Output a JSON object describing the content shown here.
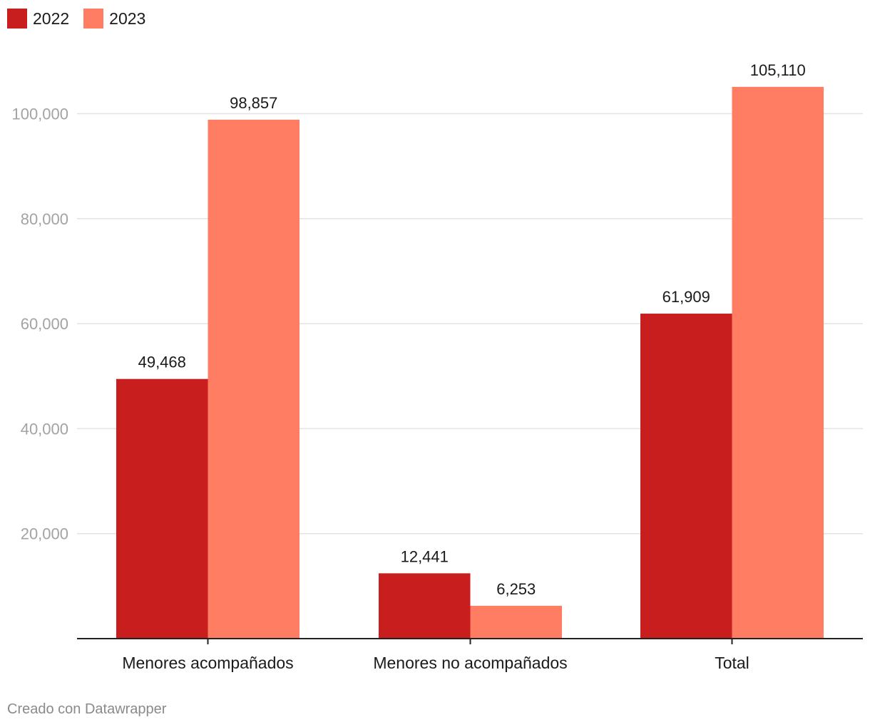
{
  "legend": [
    {
      "label": "2022",
      "color": "#c81e1e"
    },
    {
      "label": "2023",
      "color": "#ff7d62"
    }
  ],
  "footer": {
    "credit": "Creado con Datawrapper"
  },
  "chart_data": {
    "type": "bar",
    "categories": [
      "Menores acompañados",
      "Menores no acompañados",
      "Total"
    ],
    "series": [
      {
        "name": "2022",
        "color": "#c81e1e",
        "values": [
          49468,
          12441,
          61909
        ]
      },
      {
        "name": "2023",
        "color": "#ff7d62",
        "values": [
          98857,
          6253,
          105110
        ]
      }
    ],
    "value_labels": [
      [
        "49,468",
        "12,441",
        "61,909"
      ],
      [
        "98,857",
        "6,253",
        "105,110"
      ]
    ],
    "yticks": [
      20000,
      40000,
      60000,
      80000,
      100000
    ],
    "ytick_labels": [
      "20,000",
      "40,000",
      "60,000",
      "80,000",
      "100,000"
    ],
    "ylim": [
      0,
      120000
    ],
    "grid": true,
    "legend_position": "top-left",
    "title": "",
    "xlabel": "",
    "ylabel": ""
  }
}
